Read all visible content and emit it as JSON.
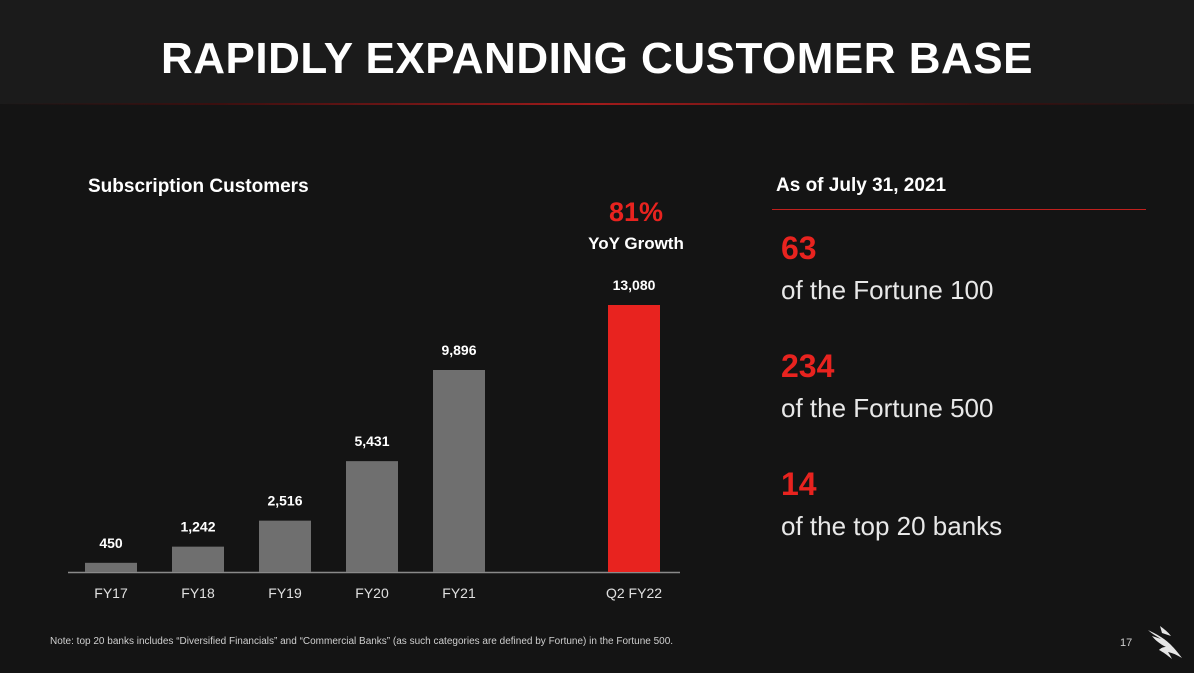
{
  "slide": {
    "title": "RAPIDLY EXPANDING CUSTOMER BASE",
    "page_number": "17",
    "note": "Note: top 20 banks includes “Diversified Financials” and “Commercial Banks” (as such categories are defined by Fortune) in the Fortune 500."
  },
  "growth": {
    "value": "81%",
    "label": "YoY Growth"
  },
  "stats": {
    "heading": "As of July 31, 2021",
    "items": [
      {
        "number": "63",
        "label": "of the Fortune 100"
      },
      {
        "number": "234",
        "label": "of the Fortune 500"
      },
      {
        "number": "14",
        "label": "of the top 20 banks"
      }
    ]
  },
  "colors": {
    "bar": "#6f6f6f",
    "highlight": "#e8231f",
    "background": "#141414"
  },
  "chart_data": {
    "type": "bar",
    "title": "Subscription Customers",
    "xlabel": "",
    "ylabel": "",
    "categories": [
      "FY17",
      "FY18",
      "FY19",
      "FY20",
      "FY21",
      "Q2 FY22"
    ],
    "values": [
      450,
      1242,
      2516,
      5431,
      9896,
      13080
    ],
    "value_labels": [
      "450",
      "1,242",
      "2,516",
      "5,431",
      "9,896",
      "13,080"
    ],
    "highlight_index": 5,
    "ylim": [
      0,
      13080
    ],
    "grid": false,
    "legend": "none"
  }
}
